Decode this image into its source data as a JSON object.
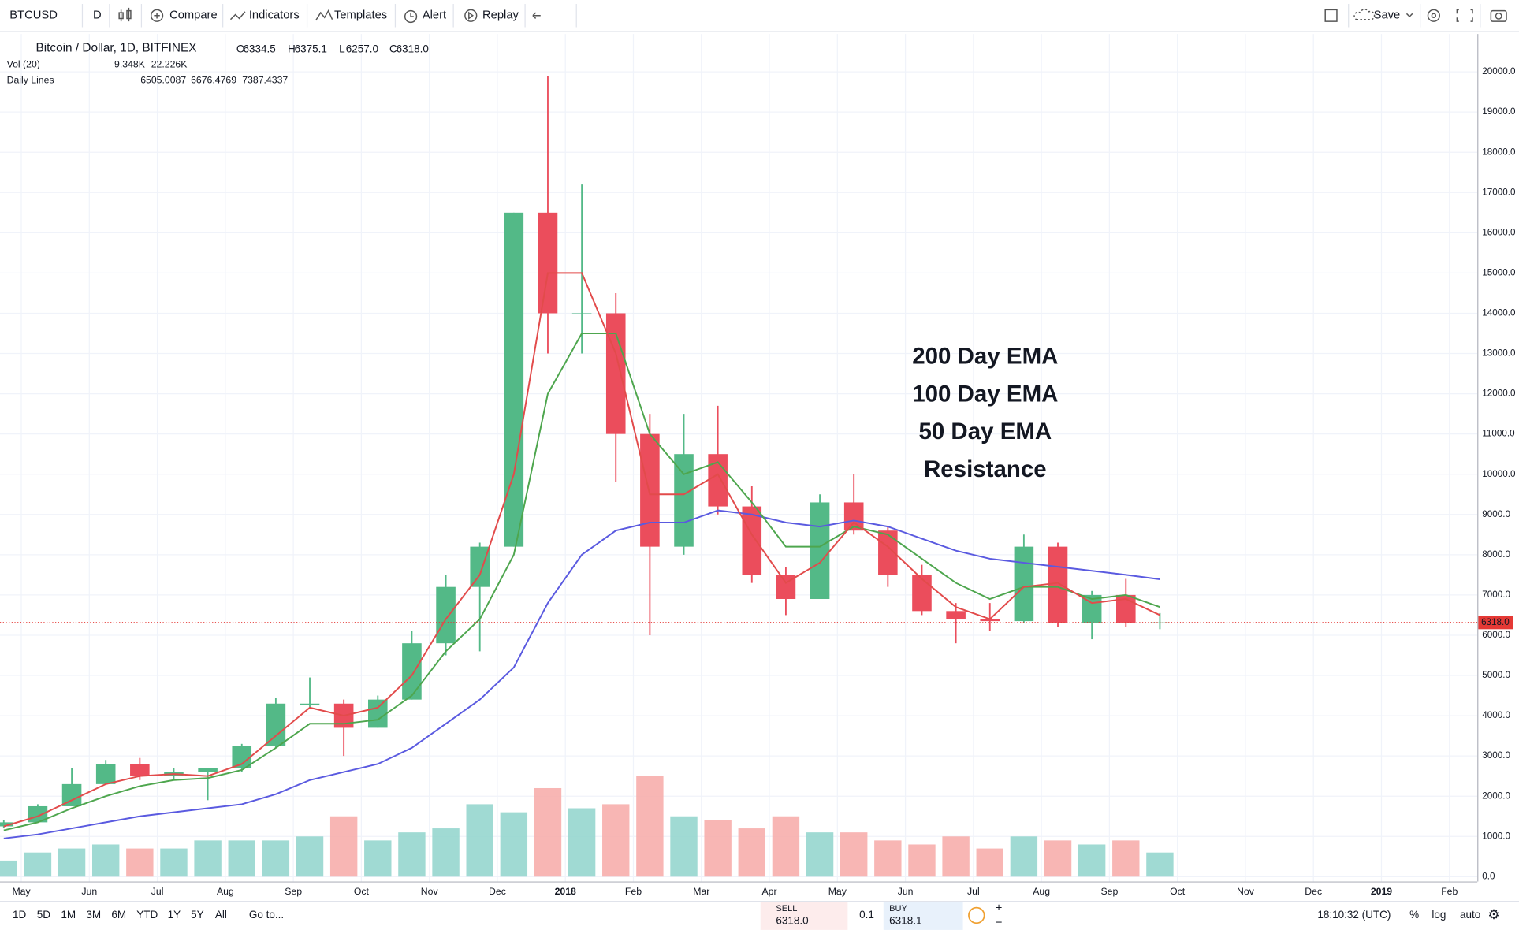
{
  "toolbar": {
    "symbol": "BTCUSD",
    "interval": "D",
    "items": [
      "Compare",
      "Indicators",
      "Templates",
      "Alert",
      "Replay"
    ],
    "save": "Save"
  },
  "legend": {
    "title": "Bitcoin / Dollar, 1D, BITFINEX",
    "ohlc": [
      {
        "key": "O",
        "value": "6334.5"
      },
      {
        "key": "H",
        "value": "6375.1"
      },
      {
        "key": "L",
        "value": "6257.0"
      },
      {
        "key": "C",
        "value": "6318.0"
      }
    ],
    "volume": {
      "name": "Vol (20)",
      "values": [
        "9.348K",
        "22.226K"
      ]
    },
    "lines": {
      "name": "Daily Lines",
      "values": [
        "6505.0087",
        "6676.4769",
        "7387.4337"
      ]
    }
  },
  "chart_data": {
    "type": "candlestick",
    "categories": [
      null,
      "May",
      null,
      "Jun",
      null,
      "Jul",
      null,
      "Aug",
      null,
      "Sep",
      null,
      "Oct",
      null,
      "Nov",
      null,
      "Dec",
      null,
      "2018",
      null,
      "Feb",
      null,
      "Mar",
      null,
      "Apr",
      null,
      "May",
      null,
      "Jun",
      null,
      "Jul",
      null,
      "Aug",
      null,
      "Sep",
      null,
      "Oct",
      null,
      "Nov",
      null,
      "Dec",
      null,
      "2019",
      null,
      "Feb",
      null
    ],
    "open": [
      1250,
      1350,
      1750,
      2300,
      2800,
      2500,
      2600,
      2700,
      3250,
      4300,
      4300,
      3700,
      4400,
      5800,
      7200,
      8200,
      16500,
      14000,
      14000,
      11000,
      8200,
      10500,
      9200,
      7500,
      6900,
      9300,
      8600,
      7500,
      6600,
      6400,
      6350,
      8200,
      6300,
      7000,
      6300,
      null,
      null,
      null,
      null,
      null,
      null,
      null,
      null,
      null,
      null
    ],
    "high": [
      1400,
      1800,
      2700,
      2900,
      2950,
      2700,
      2650,
      3300,
      4450,
      4950,
      4400,
      4500,
      6100,
      7500,
      8300,
      16500,
      19900,
      17200,
      14500,
      11500,
      11500,
      11700,
      9700,
      7700,
      9500,
      10000,
      8700,
      7750,
      6800,
      6800,
      8500,
      8300,
      7100,
      7400,
      6550,
      null,
      null,
      null,
      null,
      null,
      null,
      null,
      null,
      null,
      null
    ],
    "low": [
      1200,
      1350,
      1750,
      2300,
      2400,
      2400,
      1900,
      2600,
      3200,
      4200,
      3000,
      3700,
      4400,
      5500,
      5600,
      8200,
      13000,
      13000,
      9800,
      6000,
      8000,
      9000,
      7300,
      6500,
      6900,
      8500,
      7200,
      6500,
      5800,
      6100,
      6300,
      6200,
      5900,
      6200,
      6150,
      null,
      null,
      null,
      null,
      null,
      null,
      null,
      null,
      null,
      null
    ],
    "close": [
      1350,
      1750,
      2300,
      2800,
      2500,
      2600,
      2700,
      3250,
      4300,
      4300,
      3700,
      4400,
      5800,
      7200,
      8200,
      16500,
      14000,
      14000,
      11000,
      8200,
      10500,
      9200,
      7500,
      6900,
      9300,
      8600,
      7500,
      6600,
      6400,
      6350,
      8200,
      6300,
      7000,
      6300,
      6318,
      null,
      null,
      null,
      null,
      null,
      null,
      null,
      null,
      null,
      null
    ],
    "up_color": "#53b987",
    "down_color": "#eb4d5c",
    "volume": {
      "values": [
        400,
        600,
        700,
        800,
        700,
        700,
        900,
        900,
        900,
        1000,
        1500,
        900,
        1100,
        1200,
        1800,
        1600,
        2200,
        1700,
        1800,
        2500,
        1500,
        1400,
        1200,
        1500,
        1100,
        1100,
        900,
        800,
        1000,
        700,
        1000,
        900,
        800,
        900,
        600,
        null,
        null,
        null,
        null,
        null,
        null,
        null,
        null,
        null,
        null
      ],
      "up_color": "#8fd3cb",
      "down_color": "#f7a9a7"
    },
    "series": [
      {
        "name": "200 Day EMA",
        "color": "#5a5ae0",
        "values": [
          950,
          1050,
          1200,
          1350,
          1500,
          1600,
          1700,
          1800,
          2050,
          2400,
          2600,
          2800,
          3200,
          3800,
          4400,
          5200,
          6800,
          8000,
          8600,
          8800,
          8800,
          9100,
          9000,
          8800,
          8700,
          8850,
          8700,
          8400,
          8100,
          7900,
          7800,
          7700,
          7600,
          7500,
          7390,
          null,
          null,
          null,
          null,
          null,
          null,
          null,
          null,
          null,
          null
        ]
      },
      {
        "name": "100 Day EMA",
        "color": "#4ea64e",
        "values": [
          1150,
          1350,
          1700,
          2000,
          2250,
          2400,
          2450,
          2650,
          3200,
          3800,
          3800,
          3900,
          4500,
          5600,
          6400,
          8000,
          12000,
          13500,
          13500,
          11000,
          10000,
          10300,
          9300,
          8200,
          8200,
          8700,
          8500,
          7900,
          7300,
          6900,
          7200,
          7200,
          6900,
          7000,
          6700,
          null,
          null,
          null,
          null,
          null,
          null,
          null,
          null,
          null,
          null
        ]
      },
      {
        "name": "50 Day EMA",
        "color": "#e24b4b",
        "values": [
          1250,
          1500,
          1900,
          2300,
          2500,
          2550,
          2500,
          2800,
          3500,
          4200,
          4000,
          4200,
          5000,
          6400,
          7500,
          10000,
          15000,
          15000,
          13000,
          9500,
          9500,
          10000,
          8500,
          7300,
          7800,
          8800,
          8200,
          7400,
          6700,
          6400,
          7200,
          7300,
          6800,
          6900,
          6500,
          null,
          null,
          null,
          null,
          null,
          null,
          null,
          null,
          null,
          null
        ]
      }
    ],
    "annotation": "Resistance",
    "last_price": {
      "value": 6318,
      "label": "6318.0",
      "color": "#e53935"
    },
    "ylim": [
      -120,
      20940
    ],
    "yticks": [
      {
        "value": 0,
        "label": "0.0"
      },
      {
        "value": 1000,
        "label": "1000.0"
      },
      {
        "value": 2000,
        "label": "2000.0"
      },
      {
        "value": 3000,
        "label": "3000.0"
      },
      {
        "value": 4000,
        "label": "4000.0"
      },
      {
        "value": 5000,
        "label": "5000.0"
      },
      {
        "value": 6000,
        "label": "6000.0"
      },
      {
        "value": 7000,
        "label": "7000.0"
      },
      {
        "value": 8000,
        "label": "8000.0"
      },
      {
        "value": 9000,
        "label": "9000.0"
      },
      {
        "value": 10000,
        "label": "10000.0"
      },
      {
        "value": 11000,
        "label": "11000.0"
      },
      {
        "value": 12000,
        "label": "12000.0"
      },
      {
        "value": 13000,
        "label": "13000.0"
      },
      {
        "value": 14000,
        "label": "14000.0"
      },
      {
        "value": 15000,
        "label": "15000.0"
      },
      {
        "value": 16000,
        "label": "16000.0"
      },
      {
        "value": 17000,
        "label": "17000.0"
      },
      {
        "value": 18000,
        "label": "18000.0"
      },
      {
        "value": 19000,
        "label": "19000.0"
      },
      {
        "value": 20000,
        "label": "20000.0"
      }
    ],
    "grid": true
  },
  "bottom_bar": {
    "ranges": [
      "1D",
      "5D",
      "1M",
      "3M",
      "6M",
      "YTD",
      "1Y",
      "5Y",
      "All"
    ],
    "goto": "Go to...",
    "sell": {
      "label": "SELL",
      "price": "6318.0"
    },
    "quantity": "0.1",
    "buy": {
      "label": "BUY",
      "price": "6318.1"
    },
    "clock": "18:10:32 (UTC)",
    "options": [
      "%",
      "log",
      "auto"
    ]
  }
}
